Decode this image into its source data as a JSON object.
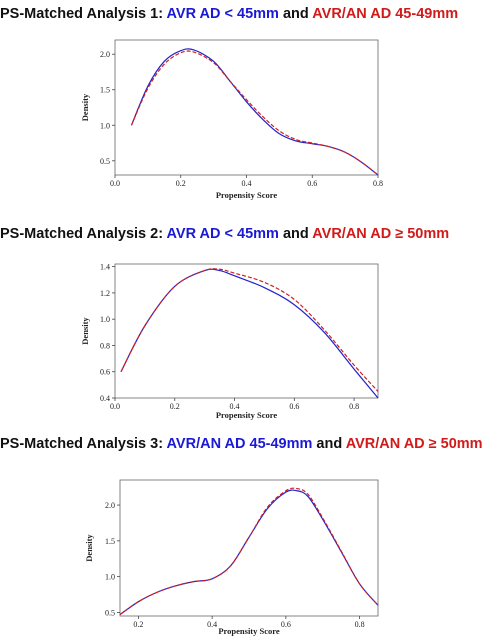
{
  "panels": [
    {
      "title_prefix": "PS-Matched Analysis 1: ",
      "group_a": "AVR AD < 45mm",
      "joiner": " and ",
      "group_b": "AVR/AN AD 45-49mm"
    },
    {
      "title_prefix": "PS-Matched Analysis 2: ",
      "group_a": "AVR AD < 45mm",
      "joiner": " and ",
      "group_b": "AVR/AN AD ≥ 50mm"
    },
    {
      "title_prefix": "PS-Matched Analysis 3: ",
      "group_a": "AVR/AN AD 45-49mm",
      "joiner": " and ",
      "group_b": "AVR/AN AD ≥ 50mm"
    }
  ],
  "colors": {
    "series_a": "#2222cc",
    "series_b": "#cc2222"
  },
  "chart_data": [
    {
      "type": "line",
      "title": "",
      "xlabel": "Propensity Score",
      "ylabel": "Density",
      "xlim": [
        0,
        0.8
      ],
      "ylim": [
        0.3,
        2.2
      ],
      "xticks": [
        0.0,
        0.2,
        0.4,
        0.6,
        0.8
      ],
      "xtick_labels": [
        "0.0",
        "0.2",
        "0.4",
        "0.6",
        "0.8"
      ],
      "yticks": [
        0.5,
        1.0,
        1.5,
        2.0
      ],
      "ytick_labels": [
        "0.5",
        "1.0",
        "1.5",
        "2.0"
      ],
      "series": [
        {
          "x": [
            0.05,
            0.1,
            0.15,
            0.2,
            0.24,
            0.3,
            0.35,
            0.4,
            0.45,
            0.5,
            0.55,
            0.6,
            0.65,
            0.7,
            0.75,
            0.8
          ],
          "values": [
            1.0,
            1.55,
            1.9,
            2.05,
            2.06,
            1.9,
            1.62,
            1.33,
            1.08,
            0.88,
            0.78,
            0.74,
            0.7,
            0.62,
            0.48,
            0.3
          ]
        },
        {
          "x": [
            0.05,
            0.1,
            0.15,
            0.2,
            0.24,
            0.3,
            0.35,
            0.4,
            0.45,
            0.5,
            0.55,
            0.6,
            0.65,
            0.7,
            0.75,
            0.8
          ],
          "values": [
            1.0,
            1.52,
            1.86,
            2.02,
            2.03,
            1.88,
            1.62,
            1.36,
            1.12,
            0.92,
            0.8,
            0.75,
            0.7,
            0.62,
            0.48,
            0.3
          ]
        }
      ]
    },
    {
      "type": "line",
      "title": "",
      "xlabel": "Propensity Score",
      "ylabel": "Density",
      "xlim": [
        0,
        0.88
      ],
      "ylim": [
        0.4,
        1.42
      ],
      "xticks": [
        0.0,
        0.2,
        0.4,
        0.6,
        0.8
      ],
      "xtick_labels": [
        "0.0",
        "0.2",
        "0.4",
        "0.6",
        "0.8"
      ],
      "yticks": [
        0.4,
        0.6,
        0.8,
        1.0,
        1.2,
        1.4
      ],
      "ytick_labels": [
        "0.4",
        "0.6",
        "0.8",
        "1.0",
        "1.2",
        "1.4"
      ],
      "series": [
        {
          "x": [
            0.02,
            0.1,
            0.2,
            0.3,
            0.35,
            0.4,
            0.5,
            0.6,
            0.7,
            0.8,
            0.88
          ],
          "values": [
            0.6,
            0.95,
            1.25,
            1.37,
            1.37,
            1.33,
            1.24,
            1.11,
            0.9,
            0.62,
            0.4
          ]
        },
        {
          "x": [
            0.02,
            0.1,
            0.2,
            0.3,
            0.35,
            0.4,
            0.5,
            0.6,
            0.7,
            0.8,
            0.88
          ],
          "values": [
            0.6,
            0.95,
            1.25,
            1.37,
            1.38,
            1.35,
            1.28,
            1.15,
            0.92,
            0.65,
            0.45
          ]
        }
      ]
    },
    {
      "type": "line",
      "title": "",
      "xlabel": "Propensity Score",
      "ylabel": "Density",
      "xlim": [
        0.15,
        0.85
      ],
      "ylim": [
        0.45,
        2.35
      ],
      "xticks": [
        0.2,
        0.4,
        0.6,
        0.8
      ],
      "xtick_labels": [
        "0.2",
        "0.4",
        "0.6",
        "0.8"
      ],
      "yticks": [
        0.5,
        1.0,
        1.5,
        2.0
      ],
      "ytick_labels": [
        "0.5",
        "1.0",
        "1.5",
        "2.0"
      ],
      "series": [
        {
          "x": [
            0.15,
            0.2,
            0.25,
            0.3,
            0.35,
            0.4,
            0.45,
            0.5,
            0.55,
            0.6,
            0.63,
            0.66,
            0.7,
            0.75,
            0.8,
            0.85
          ],
          "values": [
            0.47,
            0.65,
            0.78,
            0.87,
            0.93,
            0.97,
            1.15,
            1.55,
            1.95,
            2.18,
            2.2,
            2.12,
            1.8,
            1.35,
            0.9,
            0.6
          ]
        },
        {
          "x": [
            0.15,
            0.2,
            0.25,
            0.3,
            0.35,
            0.4,
            0.45,
            0.5,
            0.55,
            0.6,
            0.63,
            0.66,
            0.7,
            0.75,
            0.8,
            0.85
          ],
          "values": [
            0.47,
            0.65,
            0.78,
            0.87,
            0.93,
            0.97,
            1.15,
            1.55,
            1.97,
            2.2,
            2.23,
            2.15,
            1.82,
            1.36,
            0.9,
            0.6
          ]
        }
      ]
    }
  ]
}
